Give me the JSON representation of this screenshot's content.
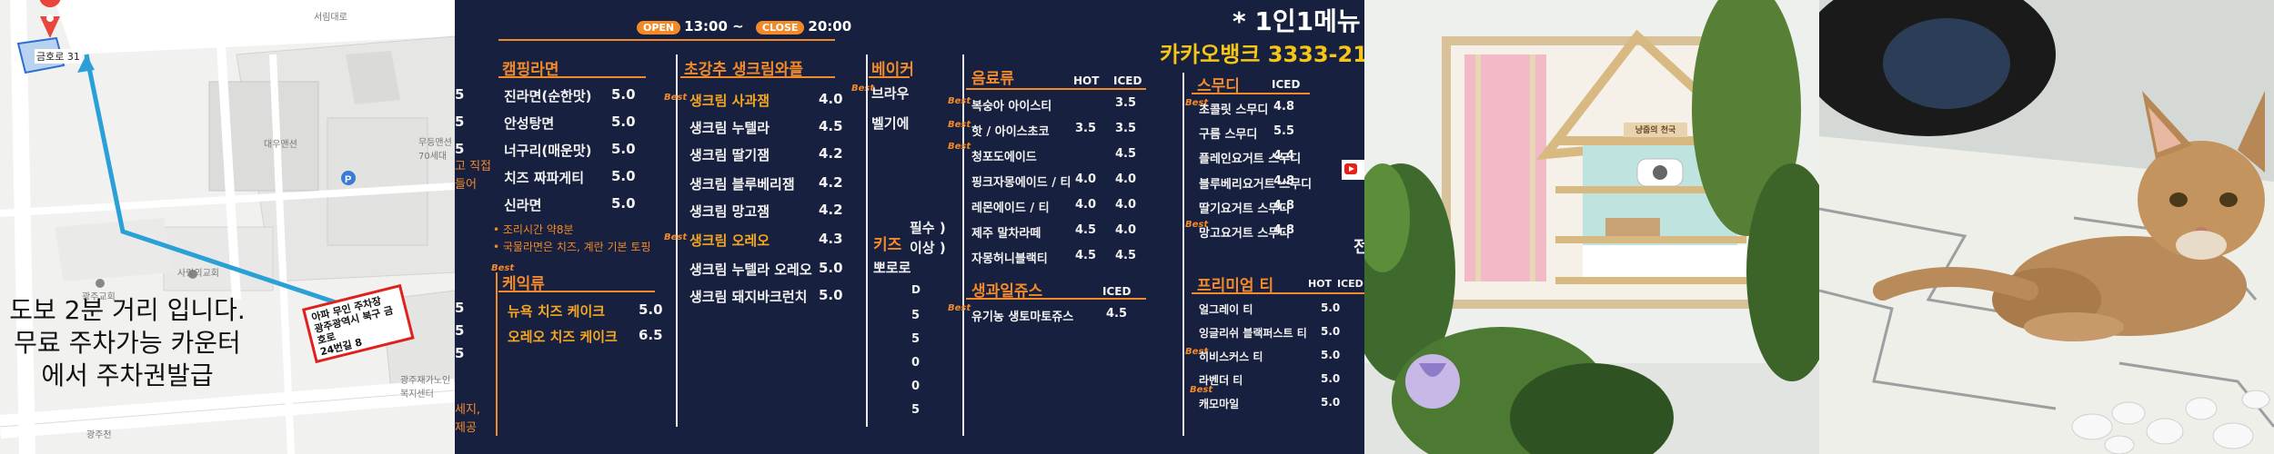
{
  "map": {
    "pin_label": "금호로 31",
    "walk_lines": [
      "도보 2분 거리 입니다.",
      "무료 주차가능 카운터",
      "에서 주차권발급"
    ],
    "parking_lines": [
      "아파 무인 주차장",
      "광주광역시 북구 금호로",
      "24번길 8"
    ],
    "labels": {
      "street_top": "서림대로",
      "building_1": "대우맨션",
      "building_2": "무등맨션 70세대",
      "church": "사랑의교회",
      "church2": "광주교회",
      "welfare": "광주재가노인 복지센터",
      "street_bottom": "광주천"
    },
    "colors": {
      "route": "#2a9fd8",
      "pin": "#e8453c",
      "box": "#e0201b"
    }
  },
  "menu": {
    "hours": {
      "open_label": "OPEN",
      "open_time": "13:00 ~",
      "close_label": "CLOSE",
      "close_time": "20:00"
    },
    "single_menu": "* 1인1메뉴",
    "bank": "카카오뱅크 3333-21",
    "best": "Best",
    "left_edge": {
      "nums": [
        "5",
        "5",
        "5",
        "5",
        "5",
        "5",
        "5",
        "5",
        "5"
      ],
      "notes": [
        "고 직접",
        "들어",
        "세지,",
        "제공"
      ]
    },
    "ramen": {
      "title": "캠핑라면",
      "items": [
        {
          "name": "진라면(순한맛)",
          "price": "5.0"
        },
        {
          "name": "안성탕면",
          "price": "5.0"
        },
        {
          "name": "너구리(매운맛)",
          "price": "5.0"
        },
        {
          "name": "치즈 짜파게티",
          "price": "5.0"
        },
        {
          "name": "신라면",
          "price": "5.0"
        }
      ],
      "notes": [
        "• 조리시간 약8분",
        "• 국물라면은 치즈, 계란 기본 토핑"
      ]
    },
    "cake": {
      "title": "케익류",
      "items": [
        {
          "name": "뉴욕 치즈 케이크",
          "price": "5.0"
        },
        {
          "name": "오레오 치즈 케이크",
          "price": "6.5"
        }
      ]
    },
    "waffle": {
      "title": "초강추 생크림와플",
      "items": [
        {
          "name": "생크림 사과잼",
          "price": "4.0"
        },
        {
          "name": "생크림 누텔라",
          "price": "4.5"
        },
        {
          "name": "생크림 딸기잼",
          "price": "4.2"
        },
        {
          "name": "생크림 블루베리잼",
          "price": "4.2"
        },
        {
          "name": "생크림 망고잼",
          "price": "4.2"
        },
        {
          "name": "생크림 오레오",
          "price": "4.3"
        },
        {
          "name": "생크림 누텔라 오레오",
          "price": "5.0"
        },
        {
          "name": "생크림 돼지바크런치",
          "price": "5.0"
        }
      ]
    },
    "bakery": {
      "title": "베이커",
      "items": [
        "브라우",
        "벨기에"
      ],
      "kids_title": "키즈",
      "kids_items": [
        "뽀로로"
      ],
      "kids_notes": [
        "필수 )",
        "이상 )"
      ],
      "col_letter": "D",
      "col_digits": [
        "5",
        "5",
        "0",
        "0",
        "5"
      ]
    },
    "drinks": {
      "title": "음료류",
      "hot": "HOT",
      "iced": "ICED",
      "items": [
        {
          "name": "복숭아 아이스티",
          "hot": "",
          "iced": "3.5"
        },
        {
          "name": "핫 / 아이스초코",
          "hot": "3.5",
          "iced": "3.5"
        },
        {
          "name": "청포도에이드",
          "hot": "",
          "iced": "4.5"
        },
        {
          "name": "핑크자몽에이드 / 티",
          "hot": "4.0",
          "iced": "4.0"
        },
        {
          "name": "레몬에이드 / 티",
          "hot": "4.0",
          "iced": "4.0"
        },
        {
          "name": "제주 말차라떼",
          "hot": "4.5",
          "iced": "4.0"
        },
        {
          "name": "자몽허니블랙티",
          "hot": "4.5",
          "iced": "4.5"
        }
      ]
    },
    "juice": {
      "title": "생과일쥬스",
      "iced": "ICED",
      "items": [
        {
          "name": "유기농 생토마토쥬스",
          "iced": "4.5"
        }
      ]
    },
    "smoothie": {
      "title": "스무디",
      "iced": "ICED",
      "items": [
        {
          "name": "초콜릿 스무디",
          "iced": "4.8"
        },
        {
          "name": "구름 스무디",
          "iced": "5.5"
        },
        {
          "name": "플레인요거트 스무디",
          "iced": "4.4"
        },
        {
          "name": "블루베리요거트 스무디",
          "iced": "4.8"
        },
        {
          "name": "딸기요거트 스무디",
          "iced": "4.8"
        },
        {
          "name": "망고요거트 스무디",
          "iced": "4.8"
        }
      ]
    },
    "premium_tea": {
      "title": "프리미엄 티",
      "hot": "HOT",
      "iced": "ICED",
      "items": [
        {
          "name": "얼그레이 티",
          "hot": "5.0"
        },
        {
          "name": "잉글리쉬 블랙퍼스트 티",
          "hot": "5.0"
        },
        {
          "name": "히비스커스 티",
          "hot": "5.0"
        },
        {
          "name": "라벤더 티",
          "hot": "5.0"
        },
        {
          "name": "캐모마일",
          "hot": "5.0"
        }
      ]
    },
    "cut_right": "전",
    "colors": {
      "board": "#17203e",
      "accent": "#f28a2a",
      "gold": "#f5c518"
    }
  },
  "photo1": {
    "sign": "냥줍의 천국"
  },
  "photo2": {}
}
